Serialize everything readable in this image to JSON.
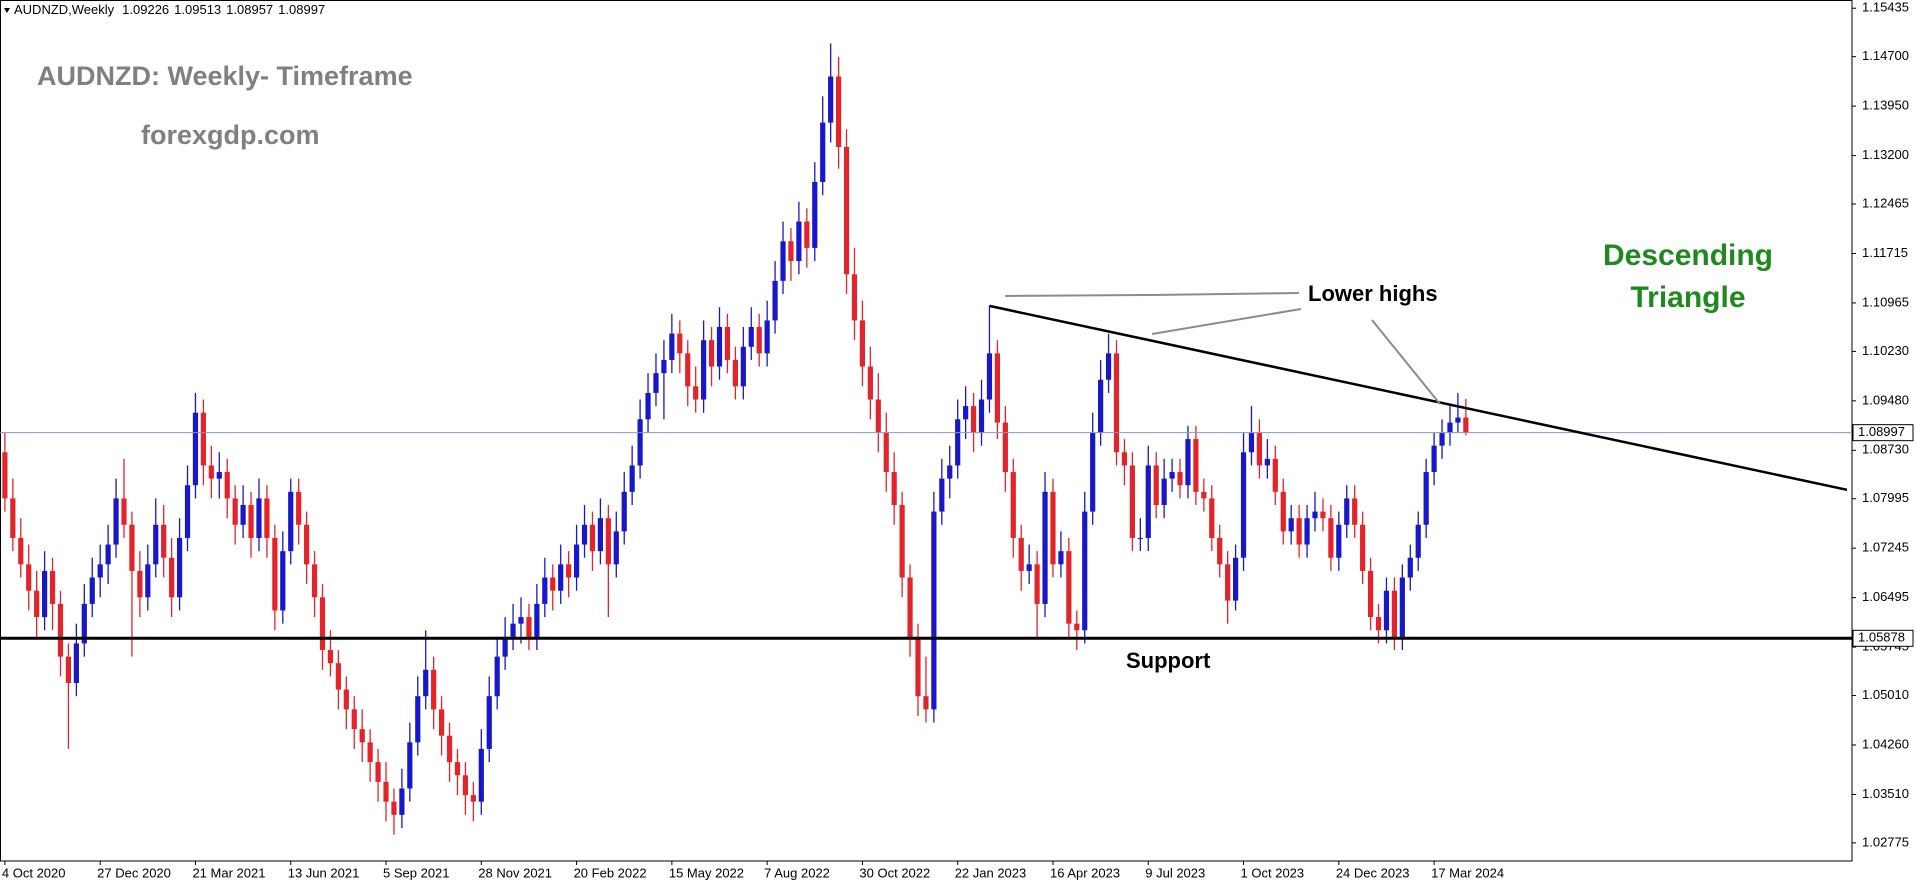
{
  "chart_data": {
    "type": "candlestick",
    "symbol": "AUDNZD,Weekly",
    "title": "AUDNZD: Weekly- Timeframe",
    "subtitle": "forexgdp.com",
    "pattern_label": [
      "Descending",
      "Triangle"
    ],
    "lower_highs_label": "Lower highs",
    "support_label": "Support",
    "support": 1.05878,
    "trendline": {
      "from": [
        124,
        1.1092
      ],
      "to": [
        232,
        1.0813
      ]
    },
    "up_color": "#1818c8",
    "down_color": "#e3242b",
    "line_color": "#000000",
    "price_line_color": "#8a9ab8",
    "grid": false,
    "ylim": [
      1.025,
      1.1556
    ],
    "yticks": [
      1.15435,
      {
        "value": 1.147,
        "label": "1.14700"
      },
      {
        "value": 1.1395,
        "label": "1.13950"
      },
      {
        "value": 1.132,
        "label": "1.13200"
      },
      1.12465,
      1.11715,
      1.10965,
      {
        "value": 1.1023,
        "label": "1.10230"
      },
      {
        "value": 1.0948,
        "label": "1.09480"
      },
      {
        "value": 1.0873,
        "label": "1.08730"
      },
      1.07995,
      1.07245,
      1.06495,
      1.05745,
      {
        "value": 1.0501,
        "label": "1.05010"
      },
      {
        "value": 1.0426,
        "label": "1.04260"
      },
      {
        "value": 1.0351,
        "label": "1.03510"
      },
      1.02775
    ],
    "categories": [
      "4 Oct 2020",
      null,
      null,
      null,
      null,
      null,
      null,
      null,
      null,
      null,
      null,
      null,
      "27 Dec 2020",
      null,
      null,
      null,
      null,
      null,
      null,
      null,
      null,
      null,
      null,
      null,
      "21 Mar 2021",
      null,
      null,
      null,
      null,
      null,
      null,
      null,
      null,
      null,
      null,
      null,
      "13 Jun 2021",
      null,
      null,
      null,
      null,
      null,
      null,
      null,
      null,
      null,
      null,
      null,
      "5 Sep 2021",
      null,
      null,
      null,
      null,
      null,
      null,
      null,
      null,
      null,
      null,
      null,
      "28 Nov 2021",
      null,
      null,
      null,
      null,
      null,
      null,
      null,
      null,
      null,
      null,
      null,
      "20 Feb 2022",
      null,
      null,
      null,
      null,
      null,
      null,
      null,
      null,
      null,
      null,
      null,
      "15 May 2022",
      null,
      null,
      null,
      null,
      null,
      null,
      null,
      null,
      null,
      null,
      null,
      "7 Aug 2022",
      null,
      null,
      null,
      null,
      null,
      null,
      null,
      null,
      null,
      null,
      null,
      "30 Oct 2022",
      null,
      null,
      null,
      null,
      null,
      null,
      null,
      null,
      null,
      null,
      null,
      "22 Jan 2023",
      null,
      null,
      null,
      null,
      null,
      null,
      null,
      null,
      null,
      null,
      null,
      "16 Apr 2023",
      null,
      null,
      null,
      null,
      null,
      null,
      null,
      null,
      null,
      null,
      null,
      "9 Jul 2023",
      null,
      null,
      null,
      null,
      null,
      null,
      null,
      null,
      null,
      null,
      null,
      "1 Oct 2023",
      null,
      null,
      null,
      null,
      null,
      null,
      null,
      null,
      null,
      null,
      null,
      "24 Dec 2023",
      null,
      null,
      null,
      null,
      null,
      null,
      null,
      null,
      null,
      null,
      null,
      "17 Mar 2024",
      null,
      null,
      null,
      null
    ],
    "ohlc": [
      [
        1.087,
        1.09,
        1.078,
        1.08
      ],
      [
        1.08,
        1.083,
        1.072,
        1.074
      ],
      [
        1.074,
        1.077,
        1.068,
        1.07
      ],
      [
        1.07,
        1.073,
        1.063,
        1.066
      ],
      [
        1.066,
        1.069,
        1.059,
        1.062
      ],
      [
        1.062,
        1.072,
        1.06,
        1.069
      ],
      [
        1.069,
        1.071,
        1.06,
        1.064
      ],
      [
        1.064,
        1.066,
        1.053,
        1.056
      ],
      [
        1.056,
        1.058,
        1.042,
        1.052
      ],
      [
        1.052,
        1.061,
        1.05,
        1.058
      ],
      [
        1.058,
        1.067,
        1.056,
        1.064
      ],
      [
        1.064,
        1.071,
        1.062,
        1.068
      ],
      [
        1.068,
        1.073,
        1.065,
        1.07
      ],
      [
        1.07,
        1.076,
        1.067,
        1.073
      ],
      [
        1.073,
        1.083,
        1.071,
        1.08
      ],
      [
        1.08,
        1.086,
        1.074,
        1.076
      ],
      [
        1.076,
        1.078,
        1.056,
        1.069
      ],
      [
        1.069,
        1.072,
        1.062,
        1.065
      ],
      [
        1.065,
        1.073,
        1.063,
        1.07
      ],
      [
        1.07,
        1.08,
        1.068,
        1.076
      ],
      [
        1.076,
        1.079,
        1.068,
        1.071
      ],
      [
        1.071,
        1.074,
        1.062,
        1.065
      ],
      [
        1.065,
        1.077,
        1.063,
        1.074
      ],
      [
        1.074,
        1.085,
        1.072,
        1.082
      ],
      [
        1.082,
        1.096,
        1.08,
        1.093
      ],
      [
        1.093,
        1.095,
        1.082,
        1.085
      ],
      [
        1.085,
        1.088,
        1.08,
        1.083
      ],
      [
        1.083,
        1.087,
        1.08,
        1.084
      ],
      [
        1.084,
        1.086,
        1.077,
        1.08
      ],
      [
        1.08,
        1.082,
        1.073,
        1.076
      ],
      [
        1.076,
        1.082,
        1.074,
        1.079
      ],
      [
        1.079,
        1.081,
        1.071,
        1.074
      ],
      [
        1.074,
        1.083,
        1.072,
        1.08
      ],
      [
        1.08,
        1.082,
        1.071,
        1.074
      ],
      [
        1.074,
        1.076,
        1.06,
        1.063
      ],
      [
        1.063,
        1.075,
        1.061,
        1.072
      ],
      [
        1.072,
        1.083,
        1.07,
        1.081
      ],
      [
        1.081,
        1.083,
        1.073,
        1.076
      ],
      [
        1.076,
        1.078,
        1.067,
        1.07
      ],
      [
        1.07,
        1.072,
        1.062,
        1.065
      ],
      [
        1.065,
        1.067,
        1.054,
        1.057
      ],
      [
        1.057,
        1.06,
        1.053,
        1.055
      ],
      [
        1.055,
        1.057,
        1.048,
        1.051
      ],
      [
        1.051,
        1.053,
        1.045,
        1.048
      ],
      [
        1.048,
        1.05,
        1.042,
        1.045
      ],
      [
        1.045,
        1.048,
        1.04,
        1.043
      ],
      [
        1.043,
        1.045,
        1.037,
        1.04
      ],
      [
        1.04,
        1.042,
        1.034,
        1.037
      ],
      [
        1.037,
        1.04,
        1.031,
        1.034
      ],
      [
        1.034,
        1.036,
        1.029,
        1.032
      ],
      [
        1.032,
        1.039,
        1.03,
        1.036
      ],
      [
        1.036,
        1.046,
        1.034,
        1.043
      ],
      [
        1.043,
        1.053,
        1.041,
        1.05
      ],
      [
        1.05,
        1.06,
        1.048,
        1.054
      ],
      [
        1.054,
        1.056,
        1.045,
        1.048
      ],
      [
        1.048,
        1.05,
        1.041,
        1.044
      ],
      [
        1.044,
        1.046,
        1.037,
        1.04
      ],
      [
        1.04,
        1.042,
        1.035,
        1.038
      ],
      [
        1.038,
        1.04,
        1.032,
        1.035
      ],
      [
        1.035,
        1.037,
        1.031,
        1.034
      ],
      [
        1.034,
        1.045,
        1.032,
        1.042
      ],
      [
        1.042,
        1.053,
        1.04,
        1.05
      ],
      [
        1.05,
        1.059,
        1.048,
        1.056
      ],
      [
        1.056,
        1.062,
        1.054,
        1.059
      ],
      [
        1.059,
        1.064,
        1.057,
        1.061
      ],
      [
        1.061,
        1.065,
        1.058,
        1.062
      ],
      [
        1.062,
        1.064,
        1.057,
        1.059
      ],
      [
        1.059,
        1.067,
        1.057,
        1.064
      ],
      [
        1.064,
        1.071,
        1.062,
        1.068
      ],
      [
        1.068,
        1.07,
        1.063,
        1.066
      ],
      [
        1.066,
        1.073,
        1.064,
        1.07
      ],
      [
        1.07,
        1.072,
        1.065,
        1.068
      ],
      [
        1.068,
        1.076,
        1.066,
        1.073
      ],
      [
        1.073,
        1.079,
        1.071,
        1.076
      ],
      [
        1.076,
        1.078,
        1.069,
        1.072
      ],
      [
        1.072,
        1.08,
        1.07,
        1.077
      ],
      [
        1.077,
        1.079,
        1.062,
        1.07
      ],
      [
        1.07,
        1.078,
        1.068,
        1.075
      ],
      [
        1.075,
        1.084,
        1.073,
        1.081
      ],
      [
        1.081,
        1.088,
        1.079,
        1.085
      ],
      [
        1.085,
        1.095,
        1.083,
        1.092
      ],
      [
        1.092,
        1.099,
        1.09,
        1.096
      ],
      [
        1.096,
        1.102,
        1.094,
        1.099
      ],
      [
        1.099,
        1.104,
        1.092,
        1.101
      ],
      [
        1.101,
        1.108,
        1.099,
        1.105
      ],
      [
        1.105,
        1.107,
        1.099,
        1.102
      ],
      [
        1.102,
        1.104,
        1.094,
        1.097
      ],
      [
        1.097,
        1.1,
        1.093,
        1.095
      ],
      [
        1.095,
        1.107,
        1.093,
        1.104
      ],
      [
        1.104,
        1.106,
        1.097,
        1.1
      ],
      [
        1.1,
        1.109,
        1.098,
        1.106
      ],
      [
        1.106,
        1.108,
        1.099,
        1.101
      ],
      [
        1.101,
        1.103,
        1.095,
        1.097
      ],
      [
        1.097,
        1.106,
        1.095,
        1.103
      ],
      [
        1.103,
        1.109,
        1.101,
        1.106
      ],
      [
        1.106,
        1.108,
        1.1,
        1.102
      ],
      [
        1.102,
        1.11,
        1.1,
        1.107
      ],
      [
        1.107,
        1.116,
        1.105,
        1.113
      ],
      [
        1.113,
        1.122,
        1.111,
        1.119
      ],
      [
        1.119,
        1.121,
        1.113,
        1.116
      ],
      [
        1.116,
        1.125,
        1.114,
        1.122
      ],
      [
        1.122,
        1.124,
        1.115,
        1.118
      ],
      [
        1.118,
        1.131,
        1.116,
        1.128
      ],
      [
        1.128,
        1.141,
        1.126,
        1.137
      ],
      [
        1.137,
        1.149,
        1.134,
        1.144
      ],
      [
        1.144,
        1.147,
        1.13,
        1.1333
      ],
      [
        1.1333,
        1.136,
        1.111,
        1.114
      ],
      [
        1.114,
        1.118,
        1.104,
        1.107
      ],
      [
        1.107,
        1.11,
        1.097,
        1.1
      ],
      [
        1.1,
        1.103,
        1.092,
        1.095
      ],
      [
        1.095,
        1.099,
        1.087,
        1.09
      ],
      [
        1.09,
        1.093,
        1.081,
        1.084
      ],
      [
        1.084,
        1.087,
        1.076,
        1.079
      ],
      [
        1.079,
        1.081,
        1.065,
        1.068
      ],
      [
        1.068,
        1.07,
        1.056,
        1.059
      ],
      [
        1.059,
        1.061,
        1.047,
        1.05
      ],
      [
        1.05,
        1.056,
        1.046,
        1.048
      ],
      [
        1.048,
        1.081,
        1.046,
        1.078
      ],
      [
        1.078,
        1.086,
        1.076,
        1.083
      ],
      [
        1.083,
        1.088,
        1.08,
        1.085
      ],
      [
        1.085,
        1.095,
        1.083,
        1.092
      ],
      [
        1.092,
        1.097,
        1.089,
        1.094
      ],
      [
        1.094,
        1.096,
        1.087,
        1.09
      ],
      [
        1.09,
        1.098,
        1.088,
        1.095
      ],
      [
        1.095,
        1.1092,
        1.093,
        1.102
      ],
      [
        1.102,
        1.104,
        1.089,
        1.0915
      ],
      [
        1.0915,
        1.094,
        1.081,
        1.084
      ],
      [
        1.084,
        1.086,
        1.071,
        1.074
      ],
      [
        1.074,
        1.076,
        1.066,
        1.069
      ],
      [
        1.069,
        1.073,
        1.067,
        1.07
      ],
      [
        1.07,
        1.072,
        1.059,
        1.064
      ],
      [
        1.064,
        1.084,
        1.062,
        1.081
      ],
      [
        1.081,
        1.083,
        1.068,
        1.07
      ],
      [
        1.07,
        1.075,
        1.068,
        1.072
      ],
      [
        1.072,
        1.074,
        1.059,
        1.061
      ],
      [
        1.061,
        1.063,
        1.057,
        1.06
      ],
      [
        1.06,
        1.081,
        1.058,
        1.078
      ],
      [
        1.078,
        1.093,
        1.076,
        1.09
      ],
      [
        1.09,
        1.101,
        1.088,
        1.098
      ],
      [
        1.098,
        1.105,
        1.096,
        1.102
      ],
      [
        1.102,
        1.104,
        1.085,
        1.087
      ],
      [
        1.087,
        1.089,
        1.082,
        1.085
      ],
      [
        1.085,
        1.087,
        1.072,
        1.074
      ],
      [
        1.074,
        1.077,
        1.072,
        1.074
      ],
      [
        1.074,
        1.088,
        1.072,
        1.085
      ],
      [
        1.085,
        1.087,
        1.077,
        1.079
      ],
      [
        1.079,
        1.086,
        1.077,
        1.083
      ],
      [
        1.083,
        1.086,
        1.081,
        1.084
      ],
      [
        1.084,
        1.086,
        1.08,
        1.082
      ],
      [
        1.082,
        1.091,
        1.08,
        1.089
      ],
      [
        1.089,
        1.091,
        1.079,
        1.081
      ],
      [
        1.081,
        1.083,
        1.078,
        1.08
      ],
      [
        1.08,
        1.082,
        1.072,
        1.074
      ],
      [
        1.074,
        1.076,
        1.068,
        1.07
      ],
      [
        1.07,
        1.072,
        1.061,
        1.0645
      ],
      [
        1.0645,
        1.073,
        1.063,
        1.071
      ],
      [
        1.071,
        1.09,
        1.069,
        1.087
      ],
      [
        1.087,
        1.094,
        1.085,
        1.09
      ],
      [
        1.09,
        1.092,
        1.083,
        1.085
      ],
      [
        1.085,
        1.089,
        1.083,
        1.086
      ],
      [
        1.086,
        1.088,
        1.079,
        1.081
      ],
      [
        1.081,
        1.083,
        1.073,
        1.075
      ],
      [
        1.075,
        1.079,
        1.073,
        1.077
      ],
      [
        1.077,
        1.079,
        1.071,
        1.073
      ],
      [
        1.073,
        1.079,
        1.071,
        1.077
      ],
      [
        1.077,
        1.081,
        1.075,
        1.078
      ],
      [
        1.078,
        1.08,
        1.075,
        1.077
      ],
      [
        1.077,
        1.079,
        1.069,
        1.071
      ],
      [
        1.071,
        1.078,
        1.069,
        1.076
      ],
      [
        1.076,
        1.082,
        1.074,
        1.08
      ],
      [
        1.08,
        1.082,
        1.074,
        1.076
      ],
      [
        1.076,
        1.078,
        1.067,
        1.069
      ],
      [
        1.069,
        1.071,
        1.06,
        1.062
      ],
      [
        1.062,
        1.064,
        1.058,
        1.06
      ],
      [
        1.06,
        1.068,
        1.058,
        1.066
      ],
      [
        1.066,
        1.068,
        1.057,
        1.059
      ],
      [
        1.059,
        1.07,
        1.057,
        1.068
      ],
      [
        1.068,
        1.073,
        1.066,
        1.071
      ],
      [
        1.071,
        1.078,
        1.069,
        1.076
      ],
      [
        1.076,
        1.086,
        1.074,
        1.084
      ],
      [
        1.084,
        1.09,
        1.082,
        1.088
      ],
      [
        1.088,
        1.092,
        1.086,
        1.09
      ],
      [
        1.09,
        1.094,
        1.088,
        1.0915
      ],
      [
        1.0915,
        1.096,
        1.09,
        1.09226
      ],
      [
        1.09226,
        1.09513,
        1.08957,
        1.08997
      ]
    ]
  }
}
